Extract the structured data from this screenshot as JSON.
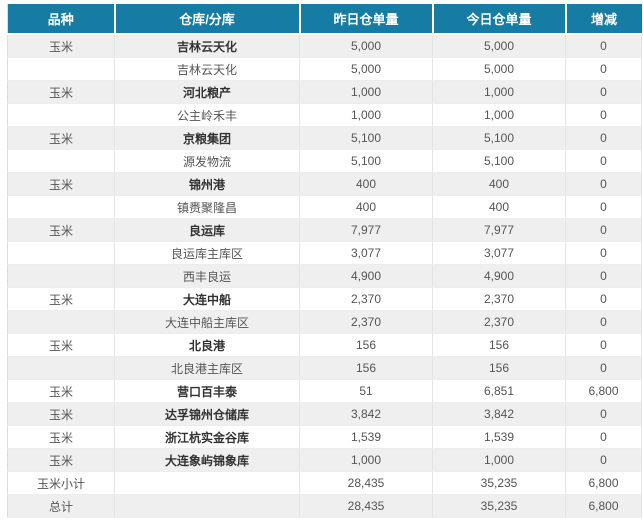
{
  "colors": {
    "header_bg": "#177CA4",
    "header_text": "#FFFFFF",
    "stripe_bg": "#EFEFEF",
    "row_bg": "#FFFFFF",
    "body_text": "#555555",
    "bold_text": "#333333"
  },
  "table": {
    "columns": [
      "品种",
      "仓库/分库",
      "昨日仓单量",
      "今日仓单量",
      "增减"
    ],
    "rows": [
      {
        "variety": "玉米",
        "warehouse": "吉林云天化",
        "type": "main",
        "yesterday": "5,000",
        "today": "5,000",
        "change": "0"
      },
      {
        "variety": "",
        "warehouse": "吉林云天化",
        "type": "sub",
        "yesterday": "5,000",
        "today": "5,000",
        "change": "0"
      },
      {
        "variety": "玉米",
        "warehouse": "河北粮产",
        "type": "main",
        "yesterday": "1,000",
        "today": "1,000",
        "change": "0"
      },
      {
        "variety": "",
        "warehouse": "公主岭禾丰",
        "type": "sub",
        "yesterday": "1,000",
        "today": "1,000",
        "change": "0"
      },
      {
        "variety": "玉米",
        "warehouse": "京粮集团",
        "type": "main",
        "yesterday": "5,100",
        "today": "5,100",
        "change": "0"
      },
      {
        "variety": "",
        "warehouse": "源发物流",
        "type": "sub",
        "yesterday": "5,100",
        "today": "5,100",
        "change": "0"
      },
      {
        "variety": "玉米",
        "warehouse": "锦州港",
        "type": "main",
        "yesterday": "400",
        "today": "400",
        "change": "0"
      },
      {
        "variety": "",
        "warehouse": "镇赉聚隆昌",
        "type": "sub",
        "yesterday": "400",
        "today": "400",
        "change": "0"
      },
      {
        "variety": "玉米",
        "warehouse": "良运库",
        "type": "main",
        "yesterday": "7,977",
        "today": "7,977",
        "change": "0"
      },
      {
        "variety": "",
        "warehouse": "良运库主库区",
        "type": "sub",
        "yesterday": "3,077",
        "today": "3,077",
        "change": "0"
      },
      {
        "variety": "",
        "warehouse": "西丰良运",
        "type": "sub",
        "yesterday": "4,900",
        "today": "4,900",
        "change": "0"
      },
      {
        "variety": "玉米",
        "warehouse": "大连中船",
        "type": "main",
        "yesterday": "2,370",
        "today": "2,370",
        "change": "0"
      },
      {
        "variety": "",
        "warehouse": "大连中船主库区",
        "type": "sub",
        "yesterday": "2,370",
        "today": "2,370",
        "change": "0"
      },
      {
        "variety": "玉米",
        "warehouse": "北良港",
        "type": "main",
        "yesterday": "156",
        "today": "156",
        "change": "0"
      },
      {
        "variety": "",
        "warehouse": "北良港主库区",
        "type": "sub",
        "yesterday": "156",
        "today": "156",
        "change": "0"
      },
      {
        "variety": "玉米",
        "warehouse": "营口百丰泰",
        "type": "main",
        "yesterday": "51",
        "today": "6,851",
        "change": "6,800"
      },
      {
        "variety": "玉米",
        "warehouse": "达孚锦州仓储库",
        "type": "main",
        "yesterday": "3,842",
        "today": "3,842",
        "change": "0"
      },
      {
        "variety": "玉米",
        "warehouse": "浙江杭实金谷库",
        "type": "main",
        "yesterday": "1,539",
        "today": "1,539",
        "change": "0"
      },
      {
        "variety": "玉米",
        "warehouse": "大连象屿锦象库",
        "type": "main",
        "yesterday": "1,000",
        "today": "1,000",
        "change": "0"
      },
      {
        "variety": "玉米小计",
        "warehouse": "",
        "type": "subtotal",
        "yesterday": "28,435",
        "today": "35,235",
        "change": "6,800"
      },
      {
        "variety": "总计",
        "warehouse": "",
        "type": "total",
        "yesterday": "28,435",
        "today": "35,235",
        "change": "6,800"
      }
    ]
  }
}
